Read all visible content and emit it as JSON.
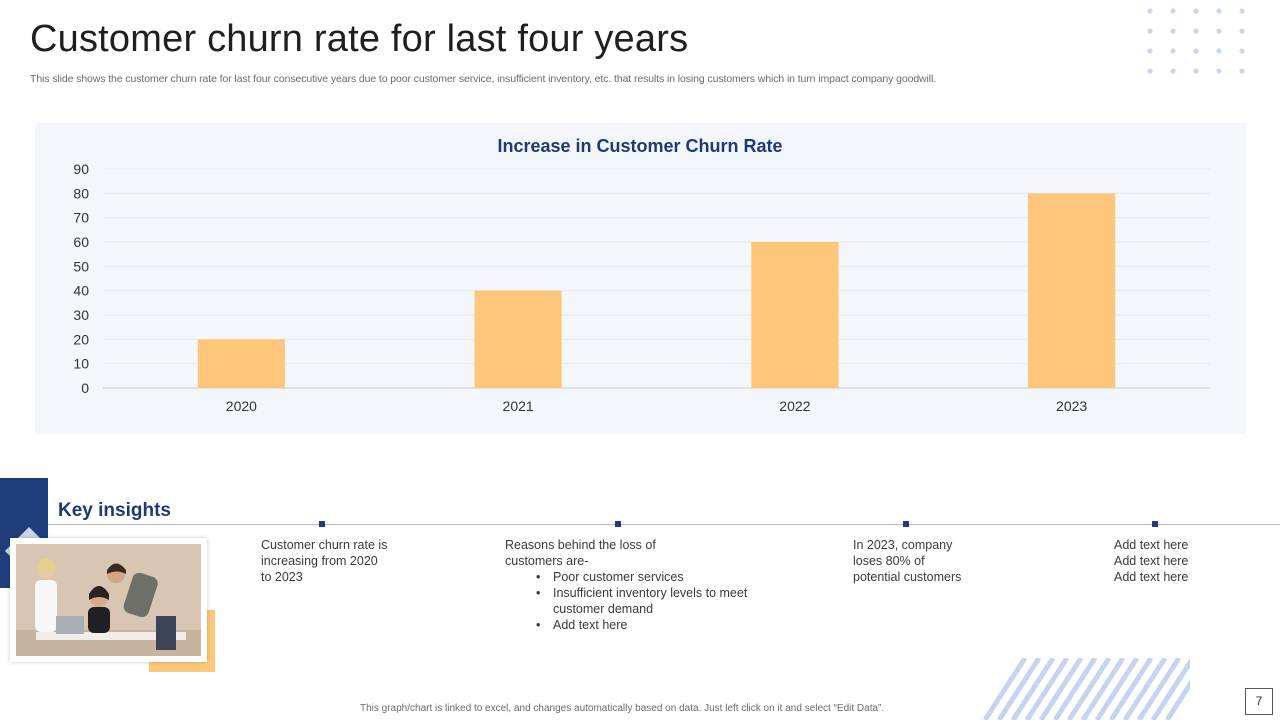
{
  "slide": {
    "title": "Customer churn rate for last four years",
    "subtitle": "This slide shows the customer churn rate for last four consecutive years due to poor customer service, insufficient inventory, etc. that results in losing customers which in turn impact company goodwill."
  },
  "chart_data": {
    "type": "bar",
    "title": "Increase in Customer Churn Rate",
    "categories": [
      "2020",
      "2021",
      "2022",
      "2023"
    ],
    "values": [
      20,
      40,
      60,
      80
    ],
    "xlabel": "",
    "ylabel": "",
    "ylim": [
      0,
      90
    ],
    "yticks": [
      0,
      10,
      20,
      30,
      40,
      50,
      60,
      70,
      80,
      90
    ],
    "grid": true,
    "legend": "none"
  },
  "insights": {
    "heading": "Key insights",
    "item1": {
      "lines": [
        "Customer churn rate is",
        "increasing from 2020",
        "to 2023"
      ]
    },
    "item2": {
      "lines": [
        "Reasons behind the loss of",
        "customers are-"
      ],
      "bullets": [
        "Poor customer services",
        "Insufficient inventory levels to meet",
        "customer demand",
        "Add text here"
      ]
    },
    "item3": {
      "lines": [
        "In 2023, company",
        "loses 80% of",
        "potential customers"
      ]
    },
    "item4": {
      "lines": [
        "Add text here",
        "Add text here",
        "Add text here"
      ]
    }
  },
  "footer": {
    "note": "This graph/chart is linked to excel, and changes automatically based on data. Just left click on it and select “Edit Data”.",
    "page_number": "7"
  },
  "colors": {
    "bar": "#fdc67a",
    "chart_title": "#1e3a73",
    "accent_navy": "#203d7b",
    "panel_bg": "#f3f6fa",
    "dots": "#c9d6ee",
    "stripes": "#c6d4ef"
  }
}
